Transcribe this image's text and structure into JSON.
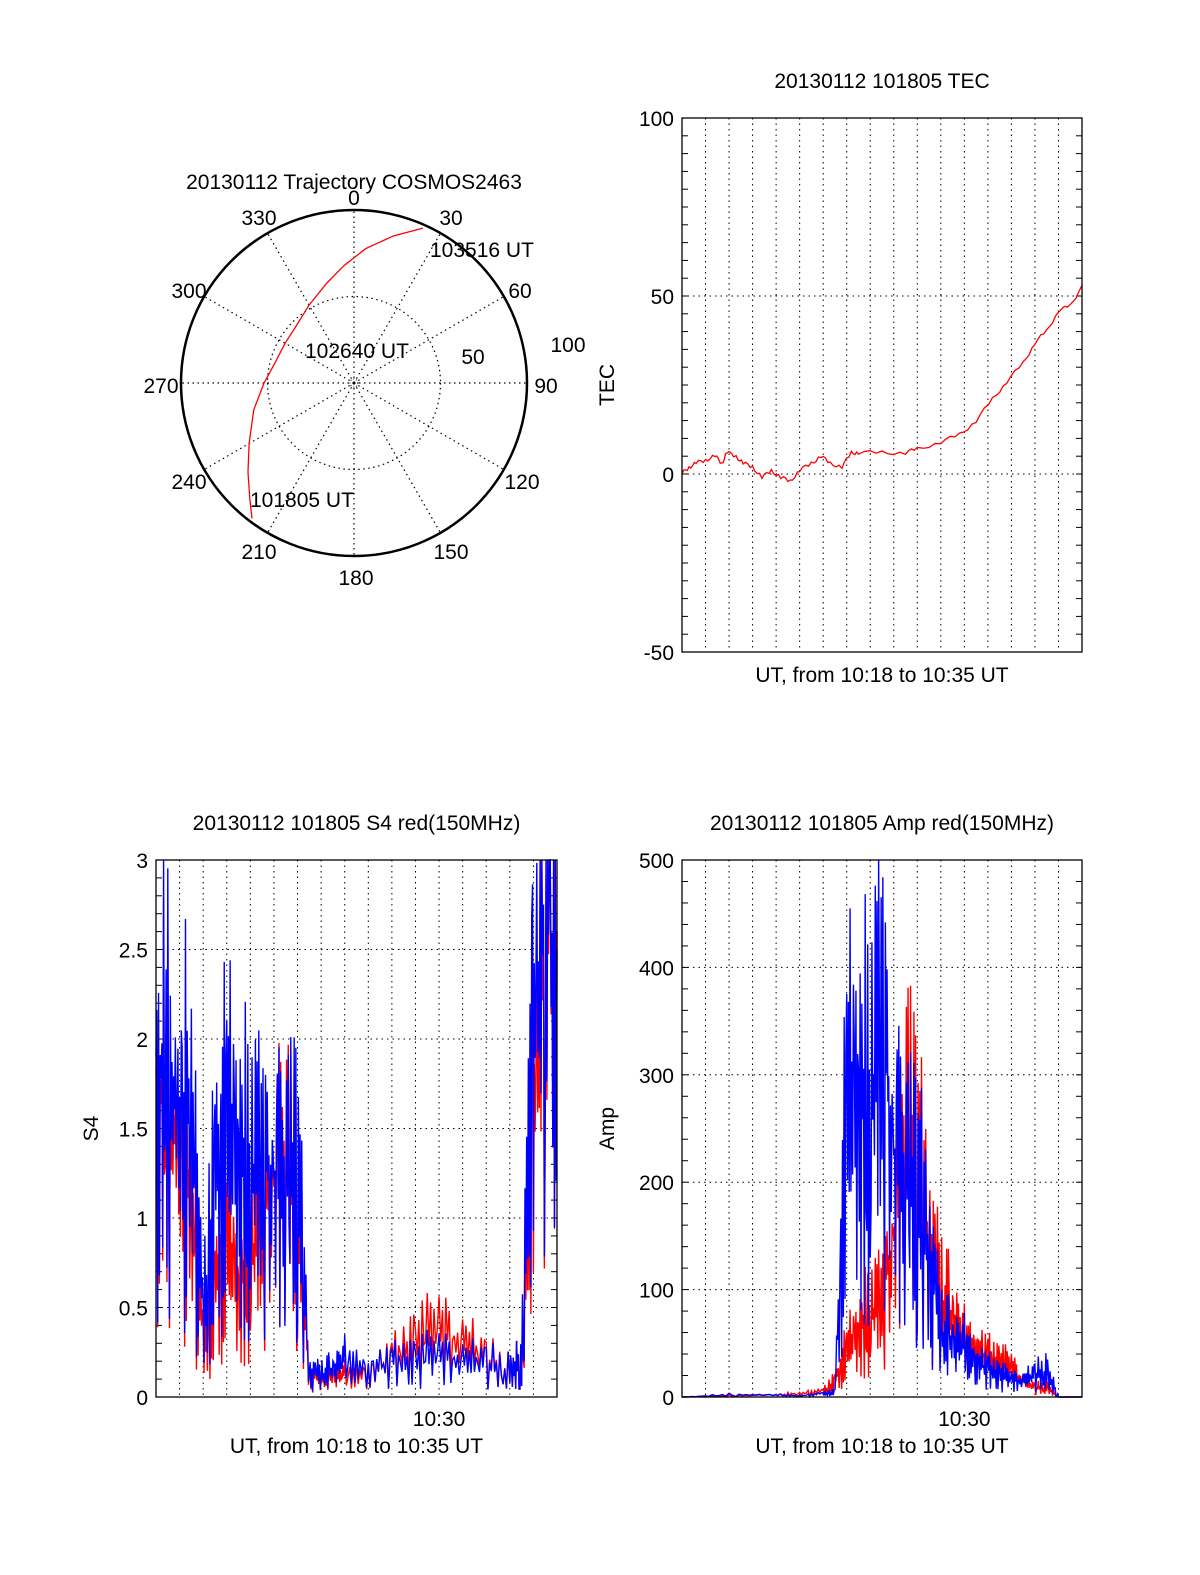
{
  "chart_data": [
    {
      "id": "polar",
      "type": "scatter",
      "subtype": "polar-trajectory",
      "title": "20130112 Trajectory COSMOS2463",
      "angle_labels": [
        "0",
        "30",
        "60",
        "90",
        "120",
        "150",
        "180",
        "210",
        "240",
        "270",
        "300",
        "330"
      ],
      "radius_labels": [
        "50",
        "100"
      ],
      "rlim": [
        0,
        100
      ],
      "annotations": [
        "103516 UT",
        "102640 UT",
        "101805 UT"
      ],
      "trajectory": {
        "color": "#ff0000",
        "points_az_r": [
          [
            217,
            98
          ],
          [
            222,
            90
          ],
          [
            230,
            80
          ],
          [
            240,
            70
          ],
          [
            255,
            60
          ],
          [
            270,
            52
          ],
          [
            285,
            47
          ],
          [
            300,
            46
          ],
          [
            315,
            47
          ],
          [
            330,
            52
          ],
          [
            345,
            60
          ],
          [
            355,
            68
          ],
          [
            5,
            78
          ],
          [
            15,
            88
          ],
          [
            24,
            98
          ]
        ]
      }
    },
    {
      "id": "tec",
      "type": "line",
      "title": "20130112 101805 TEC",
      "xlabel": "UT, from 10:18 to 10:35 UT",
      "ylabel": "TEC",
      "xlim": [
        0,
        17
      ],
      "ylim": [
        -50,
        100
      ],
      "yticks": [
        "100",
        "50",
        "0",
        "-50"
      ],
      "grid": true,
      "series": [
        {
          "name": "TEC",
          "color": "#ff0000",
          "x": [
            0,
            0.3,
            0.6,
            1,
            1.4,
            1.7,
            1.9,
            2.3,
            2.6,
            3,
            3.4,
            3.8,
            4.2,
            4.6,
            5,
            5.5,
            5.9,
            6.3,
            6.8,
            7.2,
            7.5,
            8.5,
            9.5,
            10,
            11,
            11.8,
            12.5,
            13.2,
            13.8,
            14.5,
            15,
            15.5,
            16,
            16.5,
            17
          ],
          "y": [
            0,
            2,
            3,
            4,
            5,
            3,
            6,
            5,
            3,
            2,
            -1,
            1,
            -1,
            -2,
            1,
            3,
            5,
            3,
            2,
            6,
            6,
            6,
            6,
            7,
            9,
            11,
            15,
            21,
            26,
            31,
            37,
            40,
            46,
            47,
            53
          ]
        }
      ]
    },
    {
      "id": "s4",
      "type": "line",
      "title": "20130112 101805 S4 red(150MHz)",
      "xlabel": "UT, from 10:18 to 10:35 UT",
      "ylabel": "S4",
      "xlim": [
        0,
        17
      ],
      "ylim": [
        0,
        3
      ],
      "yticks": [
        "0",
        "0.5",
        "1",
        "1.5",
        "2",
        "2.5",
        "3"
      ],
      "xticks": [
        "10:30"
      ],
      "grid": true,
      "series": [
        {
          "name": "red",
          "color": "#ff0000",
          "x": [
            0,
            0.5,
            1,
            1.5,
            2,
            2.5,
            3,
            3.5,
            4,
            4.5,
            5,
            5.5,
            6,
            6.5,
            7,
            7.5,
            8,
            9,
            10,
            11,
            12,
            13,
            14,
            15,
            15.5,
            16,
            16.5,
            17
          ],
          "y": [
            1.8,
            1.5,
            1.4,
            1.0,
            0.3,
            0.6,
            0.8,
            0.6,
            0.8,
            1.0,
            1.2,
            1.3,
            1.0,
            0.12,
            0.1,
            0.11,
            0.12,
            0.12,
            0.2,
            0.3,
            0.35,
            0.3,
            0.2,
            0.15,
            0.2,
            1.5,
            2.5,
            2.6
          ]
        },
        {
          "name": "blue",
          "color": "#0000ff",
          "x": [
            0,
            0.5,
            1,
            1.5,
            2,
            2.5,
            3,
            3.5,
            4,
            4.5,
            5,
            5.5,
            6,
            6.5,
            7,
            7.5,
            8,
            9,
            10,
            11,
            12,
            13,
            14,
            15,
            15.5,
            16,
            16.5,
            17
          ],
          "y": [
            1.9,
            1.7,
            1.6,
            1.5,
            0.4,
            1.2,
            1.4,
            1.3,
            1.3,
            1.3,
            1.25,
            1.2,
            1.2,
            0.15,
            0.12,
            0.15,
            0.2,
            0.14,
            0.18,
            0.2,
            0.22,
            0.2,
            0.18,
            0.15,
            0.2,
            2.0,
            2.7,
            2.5
          ]
        }
      ]
    },
    {
      "id": "amp",
      "type": "line",
      "title": "20130112 101805 Amp red(150MHz)",
      "xlabel": "UT, from 10:18 to 10:35 UT",
      "ylabel": "Amp",
      "xlim": [
        0,
        17
      ],
      "ylim": [
        0,
        500
      ],
      "yticks": [
        "0",
        "100",
        "200",
        "300",
        "400",
        "500"
      ],
      "xticks": [
        "10:30"
      ],
      "grid": true,
      "series": [
        {
          "name": "red",
          "color": "#ff0000",
          "x": [
            0,
            2,
            4,
            5,
            6,
            6.5,
            7,
            7.5,
            8,
            8.5,
            9,
            9.5,
            10,
            10.5,
            11,
            11.5,
            12,
            12.5,
            13,
            13.5,
            14,
            14.5,
            15,
            15.5,
            16,
            17
          ],
          "y": [
            0,
            1,
            2,
            3,
            5,
            15,
            40,
            60,
            80,
            90,
            150,
            250,
            200,
            150,
            90,
            70,
            50,
            40,
            35,
            30,
            25,
            15,
            8,
            10,
            0,
            0
          ]
        },
        {
          "name": "blue",
          "color": "#0000ff",
          "x": [
            0,
            2,
            4,
            5,
            6,
            6.5,
            7,
            7.5,
            8,
            8.5,
            9,
            9.5,
            10,
            10.5,
            11,
            11.5,
            12,
            12.5,
            13,
            13.5,
            14,
            14.5,
            15,
            15.5,
            16,
            17
          ],
          "y": [
            0,
            2,
            2,
            1,
            3,
            5,
            250,
            270,
            280,
            350,
            230,
            200,
            180,
            140,
            60,
            50,
            45,
            30,
            25,
            20,
            15,
            15,
            20,
            25,
            0,
            0
          ]
        }
      ]
    }
  ]
}
